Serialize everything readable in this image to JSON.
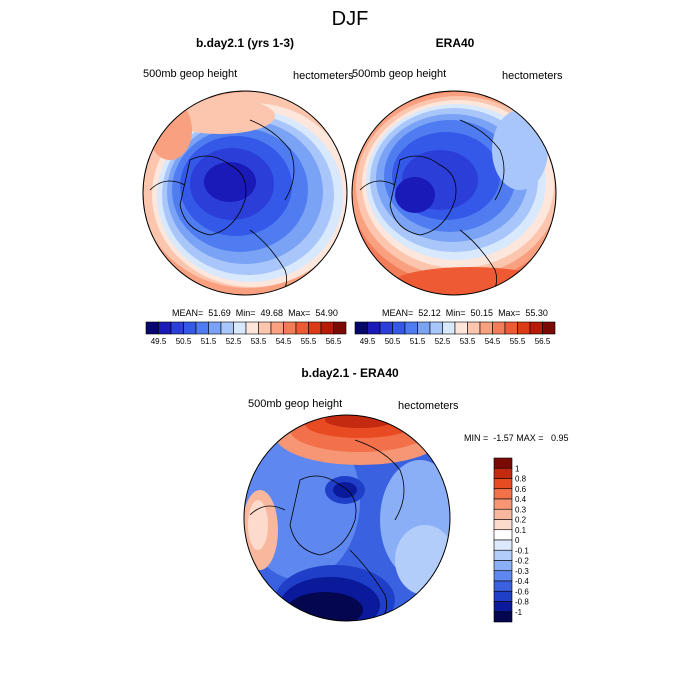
{
  "title": "DJF",
  "panels": [
    {
      "title": "b.day2.1 (yrs 1-3)",
      "left_label": "500mb geop height",
      "right_label": "hectometers",
      "stats": "MEAN=  51.69  Min=  49.68  Max=  54.90"
    },
    {
      "title": "ERA40",
      "left_label": "500mb geop height",
      "right_label": "hectometers",
      "stats": "MEAN=  52.12  Min=  50.15  Max=  55.30"
    },
    {
      "title": "b.day2.1 - ERA40",
      "left_label": "500mb geop height",
      "right_label": "hectometers",
      "stats": "MIN =  -1.57 MAX =   0.95"
    }
  ],
  "abs_colorbar": {
    "labels": [
      "49.5",
      "50.5",
      "51.5",
      "52.5",
      "53.5",
      "54.5",
      "55.5",
      "56.5"
    ],
    "colors": [
      "#06066b",
      "#1a1ab8",
      "#2b3ed8",
      "#3459e8",
      "#4f7cf0",
      "#7aa2f5",
      "#a9c6fa",
      "#d8e8fd",
      "#fde6dc",
      "#fbc5ae",
      "#f8a080",
      "#f47d59",
      "#ee5a34",
      "#dd3a16",
      "#b81a0a",
      "#7a0a05"
    ]
  },
  "diff_colorbar": {
    "labels": [
      "1",
      "0.8",
      "0.6",
      "0.4",
      "0.3",
      "0.2",
      "0.1",
      "0",
      "-0.1",
      "-0.2",
      "-0.3",
      "-0.4",
      "-0.6",
      "-0.8",
      "-1"
    ],
    "colors": [
      "#7a0a05",
      "#c32a10",
      "#e84a22",
      "#f2714a",
      "#f69674",
      "#f9b89d",
      "#fcdacc",
      "#ffffff",
      "#dce9fd",
      "#b3cdfb",
      "#8aaff6",
      "#5e88ef",
      "#3a62e0",
      "#1f3fc8",
      "#0a1a9a",
      "#04064f"
    ]
  }
}
